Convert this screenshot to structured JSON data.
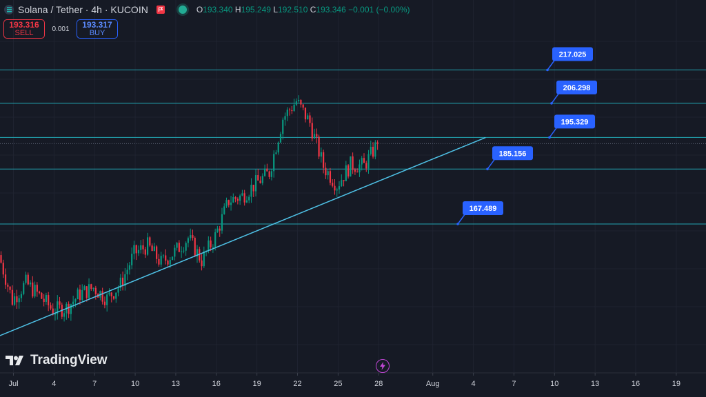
{
  "header": {
    "title": "Solana / Tether · 4h · KUCOIN",
    "open_label": "O",
    "open": "193.340",
    "high_label": "H",
    "high": "195.249",
    "low_label": "L",
    "low": "192.510",
    "close_label": "C",
    "close": "193.346",
    "change": "−0.001 (−0.00%)"
  },
  "trade": {
    "sell_price": "193.316",
    "sell_label": "SELL",
    "spread": "0.001",
    "buy_price": "193.317",
    "buy_label": "BUY"
  },
  "logo": {
    "text": "TradingView"
  },
  "colors": {
    "up": "#089981",
    "down": "#f23645",
    "level_line": "#22a6b3",
    "label_bg": "#2962ff",
    "trend_line": "#4fc3e8"
  },
  "icons": [
    "symbol-icon",
    "flag-icon",
    "market-status-icon",
    "tradingview-logo-icon",
    "lightning-icon"
  ],
  "chart_data": {
    "type": "candlestick",
    "title": "",
    "ylim": [
      156,
      229
    ],
    "x_ticks": [
      "Jul",
      "4",
      "7",
      "10",
      "13",
      "16",
      "19",
      "22",
      "25",
      "28",
      "Aug",
      "4",
      "7",
      "10",
      "13",
      "16",
      "19"
    ],
    "horizontal_levels": [
      217.025,
      206.298,
      195.329,
      185.156,
      167.489
    ],
    "current_price": 193.346,
    "trendline": {
      "start": {
        "date": "Jun 30",
        "value": 131.6
      },
      "end": {
        "date": "Aug 4 (late)",
        "value": 195.3
      }
    },
    "close_path": [
      {
        "date": "Jun 30",
        "close": 157.5
      },
      {
        "date": "Jul 1",
        "close": 143.0
      },
      {
        "date": "Jul 2",
        "close": 148.5
      },
      {
        "date": "Jul 3",
        "close": 144.5
      },
      {
        "date": "Jul 4",
        "close": 139.8
      },
      {
        "date": "Jul 5",
        "close": 140.5
      },
      {
        "date": "Jul 6",
        "close": 145.0
      },
      {
        "date": "Jul 7",
        "close": 147.0
      },
      {
        "date": "Jul 8",
        "close": 143.5
      },
      {
        "date": "Jul 9",
        "close": 148.0
      },
      {
        "date": "Jul 10",
        "close": 158.0
      },
      {
        "date": "Jul 11",
        "close": 160.5
      },
      {
        "date": "Jul 12",
        "close": 155.0
      },
      {
        "date": "Jul 13",
        "close": 158.5
      },
      {
        "date": "Jul 14",
        "close": 163.0
      },
      {
        "date": "Jul 15",
        "close": 155.8
      },
      {
        "date": "Jul 16",
        "close": 163.5
      },
      {
        "date": "Jul 17",
        "close": 175.0
      },
      {
        "date": "Jul 18",
        "close": 176.5
      },
      {
        "date": "Jul 19",
        "close": 180.5
      },
      {
        "date": "Jul 20",
        "close": 184.0
      },
      {
        "date": "Jul 21",
        "close": 201.5
      },
      {
        "date": "Jul 22",
        "close": 207.0
      },
      {
        "date": "Jul 23",
        "close": 200.0
      },
      {
        "date": "Jul 24",
        "close": 186.0
      },
      {
        "date": "Jul 25",
        "close": 180.0
      },
      {
        "date": "Jul 26",
        "close": 186.5
      },
      {
        "date": "Jul 27",
        "close": 186.2
      },
      {
        "date": "Jul 28",
        "close": 193.3
      }
    ]
  }
}
